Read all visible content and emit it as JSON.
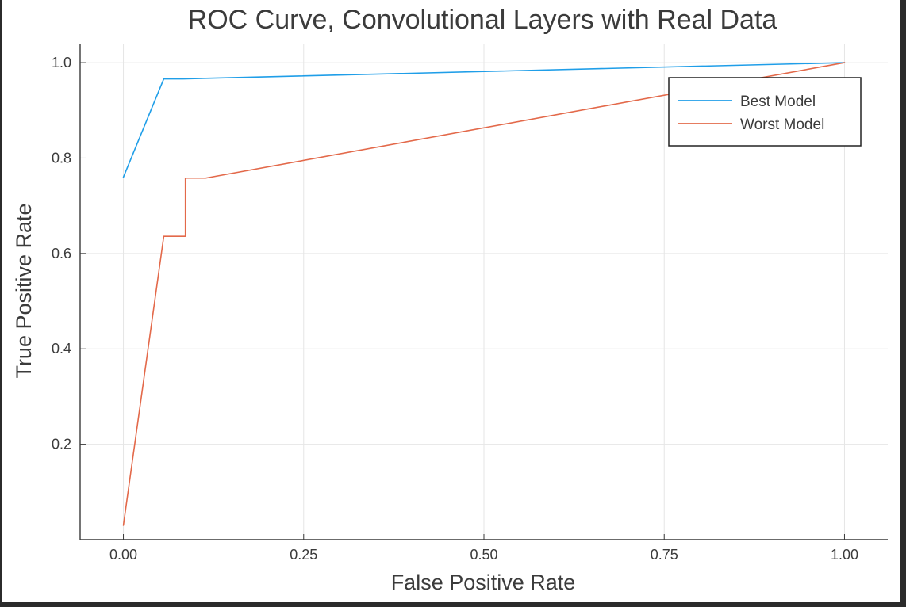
{
  "chart_data": {
    "type": "line",
    "title": "ROC Curve, Convolutional Layers with Real Data",
    "xlabel": "False Positive Rate",
    "ylabel": "True Positive Rate",
    "xlim": [
      -0.06,
      1.06
    ],
    "ylim": [
      0,
      1.04
    ],
    "xticks": [
      0.0,
      0.25,
      0.5,
      0.75,
      1.0
    ],
    "xtick_labels": [
      "0.00",
      "0.25",
      "0.50",
      "0.75",
      "1.00"
    ],
    "yticks": [
      0.2,
      0.4,
      0.6,
      0.8,
      1.0
    ],
    "ytick_labels": [
      "0.2",
      "0.4",
      "0.6",
      "0.8",
      "1.0"
    ],
    "grid": true,
    "legend_position": "top-right",
    "series": [
      {
        "name": "Best Model",
        "color": "#1f9ee8",
        "x": [
          0.0,
          0.056,
          0.083,
          1.0
        ],
        "y": [
          0.76,
          0.966,
          0.966,
          1.0
        ]
      },
      {
        "name": "Worst Model",
        "color": "#e3694a",
        "x": [
          0.0,
          0.056,
          0.086,
          0.086,
          0.114,
          1.0
        ],
        "y": [
          0.03,
          0.636,
          0.636,
          0.758,
          0.758,
          1.0
        ]
      }
    ]
  }
}
